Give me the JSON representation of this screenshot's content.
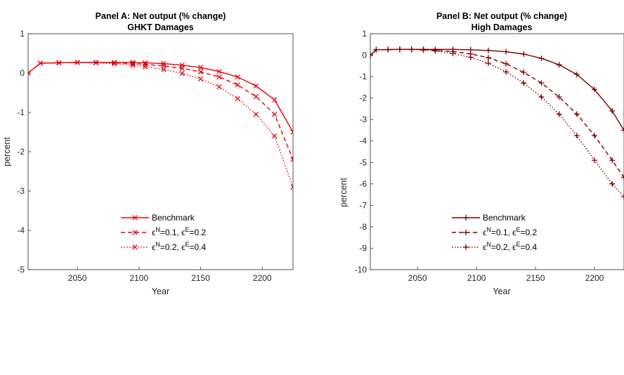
{
  "chart_data": [
    {
      "type": "line",
      "title": "Panel A: Net output (% change)",
      "subtitle": "GHKT Damages",
      "xlabel": "Year",
      "ylabel": "percent",
      "xlim": [
        2010,
        2225
      ],
      "ylim": [
        -5,
        1
      ],
      "xticks": [
        2050,
        2100,
        2150,
        2200
      ],
      "yticks": [
        -5,
        -4,
        -3,
        -2,
        -1,
        0,
        1
      ],
      "color": "#e8000b",
      "marker": "x",
      "legend_location": "bottom-center",
      "x": [
        2010,
        2020,
        2035,
        2050,
        2065,
        2080,
        2095,
        2105,
        2120,
        2135,
        2150,
        2165,
        2180,
        2195,
        2210,
        2225
      ],
      "series": [
        {
          "legend_main": "Benchmark",
          "legend_rest": "",
          "dash": "solid",
          "values": [
            0.0,
            0.25,
            0.26,
            0.27,
            0.27,
            0.27,
            0.27,
            0.26,
            0.24,
            0.2,
            0.14,
            0.04,
            -0.1,
            -0.33,
            -0.68,
            -1.5
          ]
        },
        {
          "legend_main": "",
          "legend_rest": "",
          "dash": "dashed",
          "legend_sym": [
            "ϵ",
            "=0.1, ",
            "ϵ",
            "=0.2"
          ],
          "legend_sup": [
            "N",
            "E"
          ],
          "values": [
            0.0,
            0.25,
            0.26,
            0.27,
            0.27,
            0.26,
            0.24,
            0.22,
            0.18,
            0.12,
            0.03,
            -0.1,
            -0.3,
            -0.6,
            -1.05,
            -2.2
          ]
        },
        {
          "legend_main": "",
          "legend_rest": "",
          "dash": "dotted",
          "legend_sym": [
            "ϵ",
            "=0.2, ",
            "ϵ",
            "=0.4"
          ],
          "legend_sup": [
            "N",
            "E"
          ],
          "values": [
            0.0,
            0.25,
            0.26,
            0.27,
            0.26,
            0.24,
            0.2,
            0.16,
            0.09,
            -0.01,
            -0.15,
            -0.35,
            -0.65,
            -1.05,
            -1.6,
            -2.9
          ]
        }
      ]
    },
    {
      "type": "line",
      "title": "Panel B: Net output (% change)",
      "subtitle": "High Damages",
      "xlabel": "Year",
      "ylabel": "percent",
      "xlim": [
        2010,
        2225
      ],
      "ylim": [
        -10,
        1
      ],
      "xticks": [
        2050,
        2100,
        2150,
        2200
      ],
      "yticks": [
        -10,
        -9,
        -8,
        -7,
        -6,
        -5,
        -4,
        -3,
        -2,
        -1,
        0,
        1
      ],
      "color": "#7b0000",
      "marker": "+",
      "legend_location": "bottom-center",
      "x": [
        2010,
        2015,
        2025,
        2035,
        2045,
        2055,
        2065,
        2080,
        2095,
        2110,
        2125,
        2140,
        2155,
        2170,
        2185,
        2200,
        2215,
        2225
      ],
      "series": [
        {
          "legend_main": "Benchmark",
          "legend_rest": "",
          "dash": "solid",
          "values": [
            0.0,
            0.25,
            0.26,
            0.27,
            0.27,
            0.27,
            0.27,
            0.27,
            0.25,
            0.22,
            0.16,
            0.05,
            -0.15,
            -0.45,
            -0.9,
            -1.6,
            -2.6,
            -3.5
          ]
        },
        {
          "legend_main": "",
          "legend_rest": "",
          "dash": "dashed",
          "legend_sym": [
            "ϵ",
            "=0.1, ",
            "ϵ",
            "=0.2"
          ],
          "legend_sup": [
            "N",
            "E"
          ],
          "values": [
            0.0,
            0.25,
            0.26,
            0.27,
            0.27,
            0.26,
            0.23,
            0.17,
            0.06,
            -0.12,
            -0.4,
            -0.8,
            -1.3,
            -1.95,
            -2.75,
            -3.75,
            -4.9,
            -5.7
          ]
        },
        {
          "legend_main": "",
          "legend_rest": "",
          "dash": "dotted",
          "legend_sym": [
            "ϵ",
            "=0.2, ",
            "ϵ",
            "=0.4"
          ],
          "legend_sup": [
            "N",
            "E"
          ],
          "values": [
            0.0,
            0.25,
            0.26,
            0.27,
            0.26,
            0.24,
            0.2,
            0.08,
            -0.1,
            -0.38,
            -0.78,
            -1.3,
            -1.95,
            -2.75,
            -3.75,
            -4.9,
            -6.0,
            -6.6
          ]
        }
      ]
    }
  ]
}
